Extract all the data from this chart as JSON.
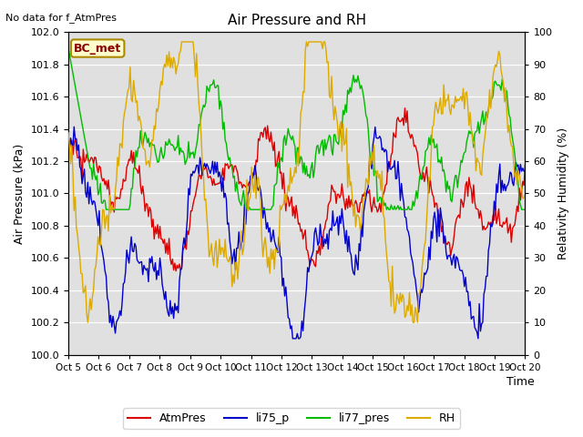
{
  "title": "Air Pressure and RH",
  "subtitle": "No data for f_AtmPres",
  "xlabel": "Time",
  "ylabel_left": "Air Pressure (kPa)",
  "ylabel_right": "Relativity Humidity (%)",
  "ylim_left": [
    100.0,
    102.0
  ],
  "ylim_right": [
    0,
    100
  ],
  "yticks_left": [
    100.0,
    100.2,
    100.4,
    100.6,
    100.8,
    101.0,
    101.2,
    101.4,
    101.6,
    101.8,
    102.0
  ],
  "yticks_right": [
    0,
    10,
    20,
    30,
    40,
    50,
    60,
    70,
    80,
    90,
    100
  ],
  "xtick_labels": [
    "Oct 5",
    "Oct 6",
    "Oct 7",
    "Oct 8",
    "Oct 9",
    "Oct 10",
    "Oct 11",
    "Oct 12",
    "Oct 13",
    "Oct 14",
    "Oct 15",
    "Oct 16",
    "Oct 17",
    "Oct 18",
    "Oct 19",
    "Oct 20"
  ],
  "box_label": "BC_met",
  "colors": {
    "AtmPres": "#dd0000",
    "li75_p": "#0000cc",
    "li77_pres": "#00bb00",
    "RH": "#ddaa00",
    "bg_plot": "#e0e0e0",
    "bg_outer": "#ffffff"
  },
  "legend_labels": [
    "AtmPres",
    "li75_p",
    "li77_pres",
    "RH"
  ],
  "n_points": 400
}
